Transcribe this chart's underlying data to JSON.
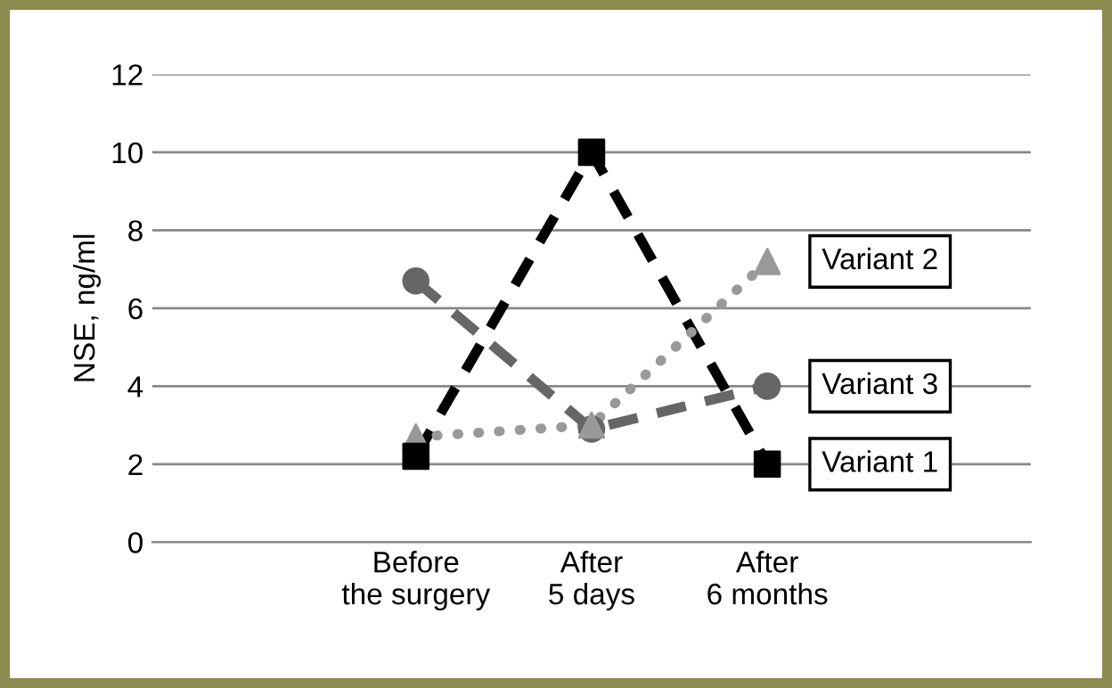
{
  "chart_data": {
    "type": "line",
    "ylabel": "NSE, ng/ml",
    "categories": [
      null,
      "Before\nthe surgery",
      "After\n5 days",
      "After\n6 months",
      null
    ],
    "series": [
      {
        "name": "Variant 1",
        "color": "#000000",
        "marker": "square",
        "line_style": "dashed",
        "values": [
          null,
          2.2,
          10,
          2.0,
          null
        ]
      },
      {
        "name": "Variant 2",
        "color": "#999999",
        "marker": "triangle",
        "line_style": "dotted",
        "values": [
          null,
          2.7,
          3.0,
          7.2,
          null
        ]
      },
      {
        "name": "Variant 3",
        "color": "#666666",
        "marker": "circle",
        "line_style": "dashed",
        "values": [
          null,
          6.7,
          2.9,
          4.0,
          null
        ]
      }
    ],
    "ylim": [
      0,
      12
    ],
    "yticks": [
      0,
      2,
      4,
      6,
      8,
      10,
      12
    ],
    "grid": "y",
    "legend": false
  }
}
